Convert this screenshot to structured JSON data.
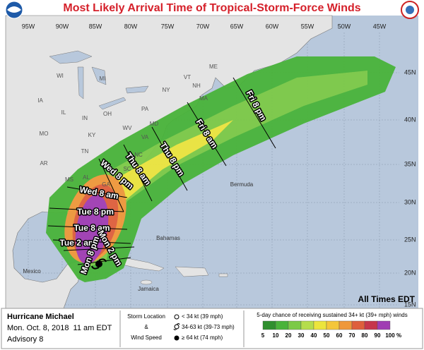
{
  "header": {
    "title": "Most Likely Arrival Time of Tropical-Storm-Force Winds"
  },
  "map": {
    "longitude_labels": [
      "95W",
      "90W",
      "85W",
      "80W",
      "75W",
      "70W",
      "65W",
      "60W",
      "55W",
      "50W",
      "45W"
    ],
    "latitude_labels": [
      "45N",
      "40N",
      "35N",
      "30N",
      "25N",
      "20N",
      "15N"
    ],
    "state_labels": [
      "IA",
      "IL",
      "MO",
      "AR",
      "MS",
      "AL",
      "GA",
      "SC",
      "NC",
      "TN",
      "KY",
      "OH",
      "IN",
      "MI",
      "WI",
      "PA",
      "NY",
      "VT",
      "NH",
      "ME",
      "MA",
      "WV",
      "VA",
      "MD"
    ],
    "place_labels": [
      "Bermuda",
      "Bahamas",
      "Mexico",
      "Jamaica"
    ],
    "arrival_times": [
      "Fri 8 pm",
      "Fri 8 am",
      "Thu 8 pm",
      "Thu 8 am",
      "Wed 8 pm",
      "Wed 8 am",
      "Tue 8 pm",
      "Tue 8 am",
      "Tue 2 am",
      "Mon 8 pm",
      "Mon 2 pm"
    ],
    "note": "All Times EDT"
  },
  "footer": {
    "storm": "Hurricane Michael",
    "date": "Mon. Oct. 8, 2018  11 am EDT",
    "advisory": "Advisory 8",
    "key_title": [
      "Storm Location",
      "&",
      "Wind Speed"
    ],
    "key_items": [
      "< 34 kt (39 mph)",
      "34-63 kt (39-73 mph)",
      "≥ 64 kt (74 mph)"
    ],
    "probability_title": "5-day chance of receiving sustained 34+ kt (39+ mph) winds",
    "probability_scale": {
      "values": [
        5,
        10,
        20,
        30,
        40,
        50,
        60,
        70,
        80,
        90,
        100
      ],
      "unit": "%",
      "colors": [
        "#2f8f2e",
        "#49b33a",
        "#7cca47",
        "#b5dd4d",
        "#ece53d",
        "#f4c63a",
        "#ef983a",
        "#de5f3c",
        "#c6364c",
        "#a03db3"
      ]
    }
  }
}
